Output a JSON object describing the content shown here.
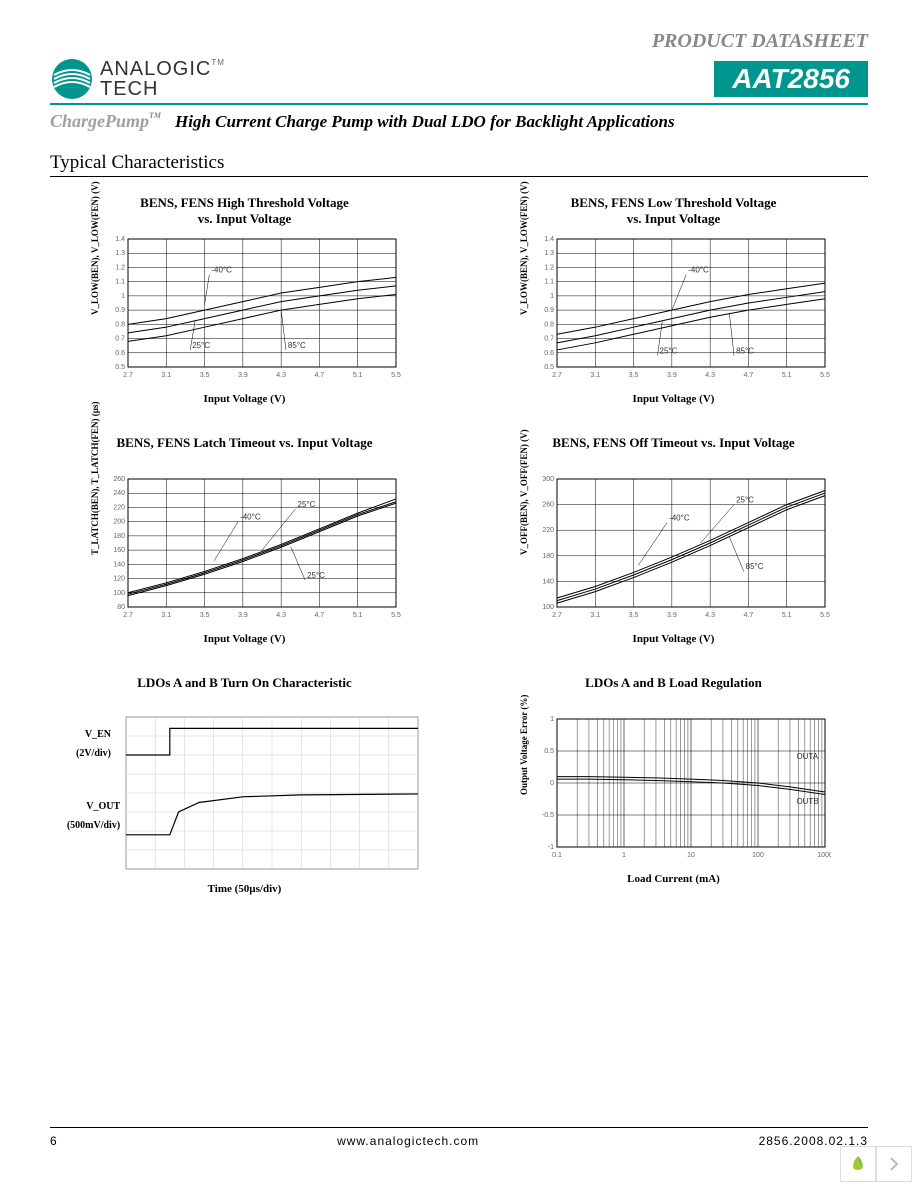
{
  "header": {
    "product_datasheet": "PRODUCT DATASHEET",
    "logo_top": "ANALOGIC",
    "logo_bottom": "TECH",
    "part_number": "AAT2856",
    "chargepump": "ChargePump",
    "tm": "TM",
    "subtitle": "High Current Charge Pump with Dual LDO for Backlight Applications"
  },
  "section_title": "Typical Characteristics",
  "footer": {
    "page": "6",
    "url": "www.analogictech.com",
    "doc": "2856.2008.02.1.3"
  },
  "charts": [
    {
      "title": "BENS, FENS High Threshold Voltage\nvs. Input Voltage",
      "xlabel": "Input Voltage (V)",
      "ylabel": "V_LOW(BEN), V_LOW(FEN) (V)",
      "type": "line",
      "xlim": [
        2.7,
        5.5
      ],
      "ylim": [
        0.5,
        1.4
      ],
      "xticks": [
        2.7,
        3.1,
        3.5,
        3.9,
        4.3,
        4.7,
        5.1,
        5.5
      ],
      "yticks": [
        0.5,
        0.6,
        0.7,
        0.8,
        0.9,
        1.0,
        1.1,
        1.2,
        1.3,
        1.4
      ],
      "series": [
        {
          "label": "-40°C",
          "label_x": 3.55,
          "label_y": 1.15,
          "leader_to_x": 3.5,
          "leader_to_y": 0.94,
          "points": [
            [
              2.7,
              0.8
            ],
            [
              3.1,
              0.84
            ],
            [
              3.5,
              0.9
            ],
            [
              3.9,
              0.96
            ],
            [
              4.3,
              1.02
            ],
            [
              4.7,
              1.06
            ],
            [
              5.1,
              1.1
            ],
            [
              5.5,
              1.13
            ]
          ]
        },
        {
          "label": "25°C",
          "label_x": 3.35,
          "label_y": 0.62,
          "leader_to_x": 3.4,
          "leader_to_y": 0.82,
          "points": [
            [
              2.7,
              0.74
            ],
            [
              3.1,
              0.78
            ],
            [
              3.5,
              0.84
            ],
            [
              3.9,
              0.9
            ],
            [
              4.3,
              0.96
            ],
            [
              4.7,
              1.0
            ],
            [
              5.1,
              1.04
            ],
            [
              5.5,
              1.07
            ]
          ]
        },
        {
          "label": "85°C",
          "label_x": 4.35,
          "label_y": 0.62,
          "leader_to_x": 4.3,
          "leader_to_y": 0.9,
          "points": [
            [
              2.7,
              0.68
            ],
            [
              3.1,
              0.72
            ],
            [
              3.5,
              0.78
            ],
            [
              3.9,
              0.84
            ],
            [
              4.3,
              0.9
            ],
            [
              4.7,
              0.94
            ],
            [
              5.1,
              0.98
            ],
            [
              5.5,
              1.01
            ]
          ]
        }
      ],
      "bg": "#ffffff",
      "grid": "#000000",
      "line_color": "#000000",
      "line_width": 1
    },
    {
      "title": "BENS, FENS Low Threshold Voltage\nvs. Input Voltage",
      "xlabel": "Input Voltage (V)",
      "ylabel": "V_LOW(BEN), V_LOW(FEN) (V)",
      "type": "line",
      "xlim": [
        2.7,
        5.5
      ],
      "ylim": [
        0.5,
        1.4
      ],
      "xticks": [
        2.7,
        3.1,
        3.5,
        3.9,
        4.3,
        4.7,
        5.1,
        5.5
      ],
      "yticks": [
        0.5,
        0.6,
        0.7,
        0.8,
        0.9,
        1.0,
        1.1,
        1.2,
        1.3,
        1.4
      ],
      "series": [
        {
          "label": "-40°C",
          "label_x": 4.05,
          "label_y": 1.15,
          "leader_to_x": 3.9,
          "leader_to_y": 0.9,
          "points": [
            [
              2.7,
              0.73
            ],
            [
              3.1,
              0.78
            ],
            [
              3.5,
              0.84
            ],
            [
              3.9,
              0.9
            ],
            [
              4.3,
              0.96
            ],
            [
              4.7,
              1.01
            ],
            [
              5.1,
              1.05
            ],
            [
              5.5,
              1.09
            ]
          ]
        },
        {
          "label": "25°C",
          "label_x": 3.75,
          "label_y": 0.58,
          "leader_to_x": 3.8,
          "leader_to_y": 0.82,
          "points": [
            [
              2.7,
              0.67
            ],
            [
              3.1,
              0.72
            ],
            [
              3.5,
              0.78
            ],
            [
              3.9,
              0.84
            ],
            [
              4.3,
              0.9
            ],
            [
              4.7,
              0.95
            ],
            [
              5.1,
              0.99
            ],
            [
              5.5,
              1.03
            ]
          ]
        },
        {
          "label": "85°C",
          "label_x": 4.55,
          "label_y": 0.58,
          "leader_to_x": 4.5,
          "leader_to_y": 0.88,
          "points": [
            [
              2.7,
              0.62
            ],
            [
              3.1,
              0.67
            ],
            [
              3.5,
              0.73
            ],
            [
              3.9,
              0.79
            ],
            [
              4.3,
              0.85
            ],
            [
              4.7,
              0.9
            ],
            [
              5.1,
              0.94
            ],
            [
              5.5,
              0.98
            ]
          ]
        }
      ],
      "bg": "#ffffff",
      "grid": "#000000",
      "line_color": "#000000",
      "line_width": 1
    },
    {
      "title": "BENS, FENS Latch Timeout vs. Input Voltage",
      "xlabel": "Input Voltage (V)",
      "ylabel": "T_LATCH(BEN), T_LATCH(FEN) (µs)",
      "type": "line",
      "xlim": [
        2.7,
        5.5
      ],
      "ylim": [
        80,
        260
      ],
      "xticks": [
        2.7,
        3.1,
        3.5,
        3.9,
        4.3,
        4.7,
        5.1,
        5.5
      ],
      "yticks": [
        80,
        100,
        120,
        140,
        160,
        180,
        200,
        220,
        240,
        260
      ],
      "series": [
        {
          "label": "-40°C",
          "label_x": 3.85,
          "label_y": 200,
          "leader_to_x": 3.6,
          "leader_to_y": 145,
          "points": [
            [
              2.7,
              100
            ],
            [
              3.1,
              114
            ],
            [
              3.5,
              130
            ],
            [
              3.9,
              148
            ],
            [
              4.3,
              168
            ],
            [
              4.7,
              190
            ],
            [
              5.1,
              212
            ],
            [
              5.5,
              232
            ]
          ]
        },
        {
          "label": "25°C",
          "label_x": 4.45,
          "label_y": 218,
          "leader_to_x": 4.1,
          "leader_to_y": 160,
          "points": [
            [
              2.7,
              98
            ],
            [
              3.1,
              112
            ],
            [
              3.5,
              128
            ],
            [
              3.9,
              146
            ],
            [
              4.3,
              166
            ],
            [
              4.7,
              188
            ],
            [
              5.1,
              210
            ],
            [
              5.5,
              228
            ]
          ]
        },
        {
          "label": "25°C",
          "label_x": 4.55,
          "label_y": 118,
          "leader_to_x": 4.4,
          "leader_to_y": 165,
          "points": [
            [
              2.7,
              96
            ],
            [
              3.1,
              110
            ],
            [
              3.5,
              126
            ],
            [
              3.9,
              144
            ],
            [
              4.3,
              164
            ],
            [
              4.7,
              186
            ],
            [
              5.1,
              208
            ],
            [
              5.5,
              226
            ]
          ]
        }
      ],
      "bg": "#ffffff",
      "grid": "#000000",
      "line_color": "#000000",
      "line_width": 1
    },
    {
      "title": "BENS, FENS Off Timeout vs. Input Voltage",
      "xlabel": "Input Voltage (V)",
      "ylabel": "V_OFF(BEN), V_OFF(FEN) (V)",
      "type": "line",
      "xlim": [
        2.7,
        5.5
      ],
      "ylim": [
        100,
        300
      ],
      "xticks": [
        2.7,
        3.1,
        3.5,
        3.9,
        4.3,
        4.7,
        5.1,
        5.5
      ],
      "yticks": [
        100,
        140,
        180,
        220,
        260,
        300
      ],
      "series": [
        {
          "label": "-40°C",
          "label_x": 3.85,
          "label_y": 232,
          "leader_to_x": 3.55,
          "leader_to_y": 165,
          "points": [
            [
              2.7,
              114
            ],
            [
              3.1,
              132
            ],
            [
              3.5,
              154
            ],
            [
              3.9,
              178
            ],
            [
              4.3,
              204
            ],
            [
              4.7,
              232
            ],
            [
              5.1,
              260
            ],
            [
              5.5,
              282
            ]
          ]
        },
        {
          "label": "25°C",
          "label_x": 4.55,
          "label_y": 260,
          "leader_to_x": 4.2,
          "leader_to_y": 200,
          "points": [
            [
              2.7,
              110
            ],
            [
              3.1,
              128
            ],
            [
              3.5,
              150
            ],
            [
              3.9,
              174
            ],
            [
              4.3,
              200
            ],
            [
              4.7,
              228
            ],
            [
              5.1,
              256
            ],
            [
              5.5,
              278
            ]
          ]
        },
        {
          "label": "85°C",
          "label_x": 4.65,
          "label_y": 156,
          "leader_to_x": 4.5,
          "leader_to_y": 210,
          "points": [
            [
              2.7,
              106
            ],
            [
              3.1,
              124
            ],
            [
              3.5,
              146
            ],
            [
              3.9,
              170
            ],
            [
              4.3,
              196
            ],
            [
              4.7,
              224
            ],
            [
              5.1,
              252
            ],
            [
              5.5,
              274
            ]
          ]
        }
      ],
      "bg": "#ffffff",
      "grid": "#000000",
      "line_color": "#000000",
      "line_width": 1
    },
    {
      "title": "LDOs A and B Turn On Characteristic",
      "xlabel": "Time (50µs/div)",
      "type": "scope",
      "ylabels": [
        {
          "line1": "V_EN",
          "line2": "(2V/div)"
        },
        {
          "line1": "V_OUT",
          "line2": "(500mV/div)"
        }
      ],
      "grid_cols": 10,
      "grid_rows": 8,
      "traces": [
        [
          [
            0,
            2.0
          ],
          [
            1.5,
            2.0
          ],
          [
            1.5,
            0.6
          ],
          [
            10,
            0.6
          ]
        ],
        [
          [
            0,
            6.2
          ],
          [
            1.5,
            6.2
          ],
          [
            1.8,
            5.0
          ],
          [
            2.5,
            4.5
          ],
          [
            4,
            4.2
          ],
          [
            6,
            4.1
          ],
          [
            10,
            4.05
          ]
        ]
      ],
      "line_color": "#000000",
      "line_width": 1.2,
      "bg": "#ffffff",
      "grid": "#cccccc"
    },
    {
      "title": "LDOs A and B Load Regulation",
      "xlabel": "Load Current (mA)",
      "ylabel": "Output Voltage Error (%)",
      "type": "semilogx",
      "xlim": [
        0.1,
        1000
      ],
      "ylim": [
        -1.0,
        1.0
      ],
      "xticks": [
        0.1,
        1,
        10,
        100,
        1000
      ],
      "yticks": [
        -1.0,
        -0.5,
        0.0,
        0.5,
        1.0
      ],
      "series": [
        {
          "label": "OUTA",
          "label_x": 350,
          "label_y": 0.34,
          "points": [
            [
              0.1,
              0.1
            ],
            [
              0.3,
              0.1
            ],
            [
              1,
              0.09
            ],
            [
              3,
              0.08
            ],
            [
              10,
              0.06
            ],
            [
              30,
              0.04
            ],
            [
              100,
              0.0
            ],
            [
              300,
              -0.06
            ],
            [
              1000,
              -0.14
            ]
          ]
        },
        {
          "label": "OUTB",
          "label_x": 350,
          "label_y": -0.36,
          "points": [
            [
              0.1,
              0.06
            ],
            [
              0.3,
              0.06
            ],
            [
              1,
              0.05
            ],
            [
              3,
              0.04
            ],
            [
              10,
              0.02
            ],
            [
              30,
              0.0
            ],
            [
              100,
              -0.04
            ],
            [
              300,
              -0.1
            ],
            [
              1000,
              -0.18
            ]
          ]
        }
      ],
      "bg": "#ffffff",
      "grid": "#000000",
      "line_color": "#000000",
      "line_width": 1
    }
  ]
}
